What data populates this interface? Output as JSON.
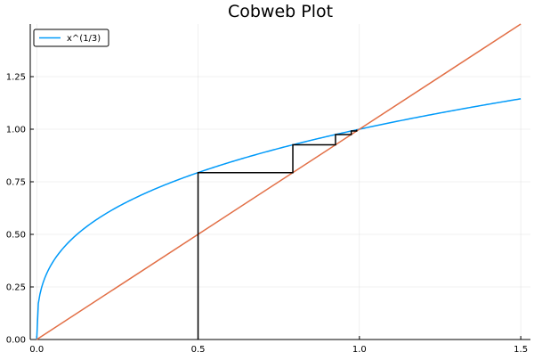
{
  "chart_data": {
    "type": "line",
    "title": "Cobweb Plot",
    "xlabel": "",
    "ylabel": "",
    "xlim": [
      -0.02,
      1.53
    ],
    "ylim": [
      0.0,
      1.5
    ],
    "xticks": [
      0.0,
      0.5,
      1.0,
      1.5
    ],
    "xtick_labels": [
      "0.0",
      "0.5",
      "1.0",
      "1.5"
    ],
    "yticks": [
      0.0,
      0.25,
      0.5,
      0.75,
      1.0,
      1.25
    ],
    "ytick_labels": [
      "0.00",
      "0.25",
      "0.50",
      "0.75",
      "1.00",
      "1.25"
    ],
    "grid": true,
    "legend": {
      "position": "top-left",
      "entries": [
        {
          "label": "x^(1/3)",
          "color": "#009af9"
        }
      ]
    },
    "series": [
      {
        "name": "x^(1/3)",
        "kind": "function",
        "function": "cbrt",
        "domain": [
          0.0,
          1.5
        ],
        "color": "#009af9"
      },
      {
        "kind": "identity",
        "x": [
          0.0,
          1.5
        ],
        "y": [
          0.0,
          1.5
        ],
        "color": "#e26f46"
      },
      {
        "kind": "cobweb",
        "x": [
          0.5,
          0.5,
          0.7937,
          0.7937,
          0.9259,
          0.9259,
          0.9747,
          0.9747,
          0.9915,
          0.9915
        ],
        "y": [
          0.0,
          0.7937,
          0.7937,
          0.9259,
          0.9259,
          0.9747,
          0.9747,
          0.9915,
          0.9915,
          0.9972
        ],
        "color": "#000000"
      }
    ]
  }
}
